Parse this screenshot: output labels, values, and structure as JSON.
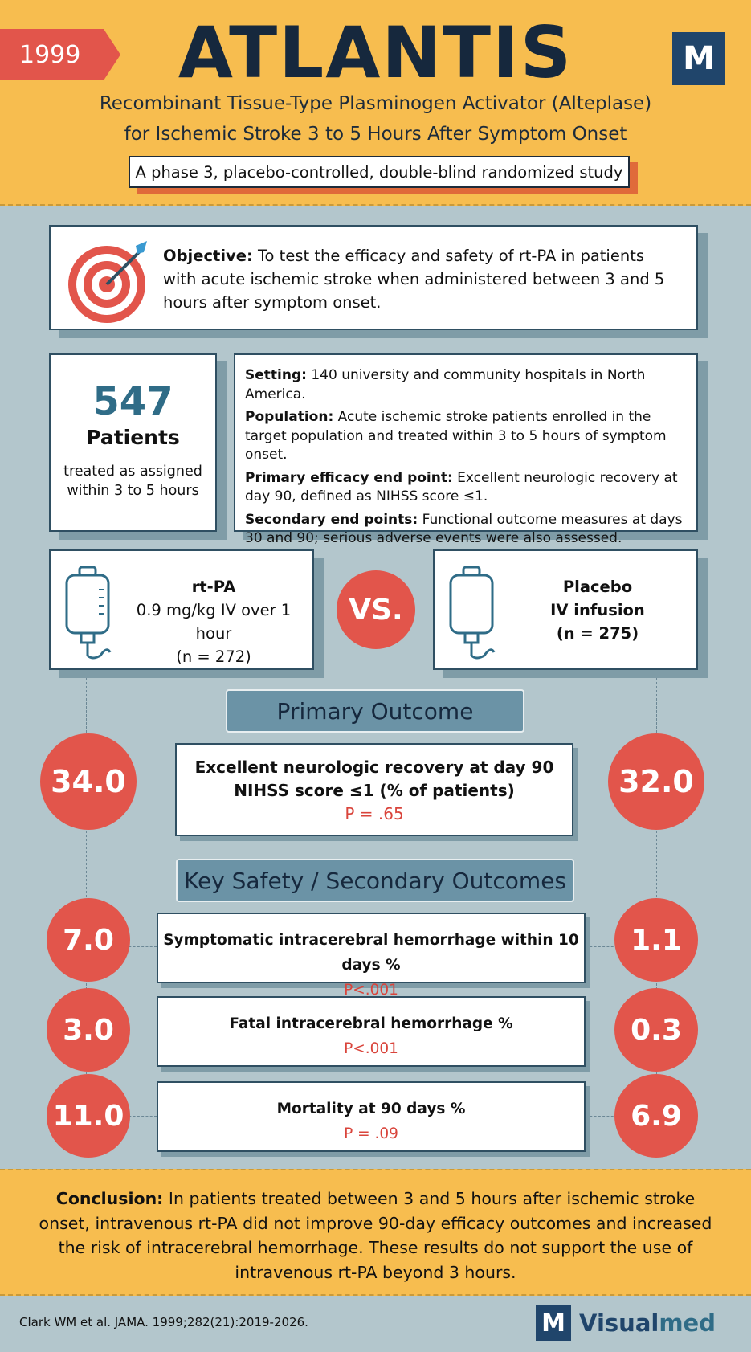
{
  "header": {
    "year": "1999",
    "title": "ATLANTIS",
    "logo_letter": "M",
    "subtitle_line1": "Recombinant Tissue-Type Plasminogen Activator (Alteplase)",
    "subtitle_line2": "for Ischemic Stroke 3 to 5 Hours After Symptom Onset",
    "design": "A phase 3, placebo-controlled, double-blind randomized study"
  },
  "objective": {
    "label": "Objective:",
    "text": " To test the efficacy and safety of rt-PA in patients with acute ischemic stroke when administered between 3 and 5 hours after symptom onset."
  },
  "patients": {
    "count": "547",
    "label": "Patients",
    "description": "treated as assigned within 3 to 5 hours"
  },
  "details": [
    {
      "label": "Setting:",
      "text": " 140 university and community hospitals in North America."
    },
    {
      "label": "Population:",
      "text": " Acute ischemic stroke patients enrolled in the target population and treated within 3 to 5 hours of symptom onset."
    },
    {
      "label": "Primary efficacy end point:",
      "text": " Excellent neurologic recovery at day 90, defined as NIHSS score ≤1."
    },
    {
      "label": "Secondary end points:",
      "text": " Functional outcome measures at days 30 and 90; serious adverse events were also assessed."
    }
  ],
  "arms": {
    "treatment": {
      "name": "rt-PA",
      "dose": "0.9 mg/kg IV over 1 hour",
      "n": "(n = 272)"
    },
    "vs": "VS.",
    "control": {
      "name": "Placebo",
      "dose": "IV infusion",
      "n": "(n = 275)"
    }
  },
  "primary": {
    "section_title": "Primary Outcome",
    "rtpa_value": "34.0",
    "placebo_value": "32.0",
    "title_line1": "Excellent neurologic recovery at day 90",
    "title_line2": "NIHSS score ≤1 (% of patients)",
    "p": "P = .65"
  },
  "safety": {
    "section_title": "Key Safety / Secondary Outcomes",
    "items": [
      {
        "label": "Symptomatic intracerebral hemorrhage within 10 days %",
        "p": "P<.001",
        "rtpa": "7.0",
        "placebo": "1.1"
      },
      {
        "label": "Fatal intracerebral hemorrhage %",
        "p": "P<.001",
        "rtpa": "3.0",
        "placebo": "0.3"
      },
      {
        "label": "Mortality at 90 days %",
        "p": "P = .09",
        "rtpa": "11.0",
        "placebo": "6.9"
      }
    ]
  },
  "conclusion": {
    "label": "Conclusion:",
    "text": " In patients treated between 3 and 5 hours after ischemic stroke onset, intravenous rt-PA did not improve 90-day efficacy outcomes and increased the risk of intracerebral hemorrhage. These results do not support the use of intravenous rt-PA beyond 3 hours."
  },
  "footer": {
    "citation": "Clark WM et al. JAMA. 1999;282(21):2019-2026.",
    "brand_letter": "M",
    "brand_visual": "Visual",
    "brand_med": "med"
  },
  "colors": {
    "header_bg": "#f7bd4f",
    "accent_red": "#e2554b",
    "navy": "#16283d",
    "body_bg": "#b3c6cc"
  }
}
